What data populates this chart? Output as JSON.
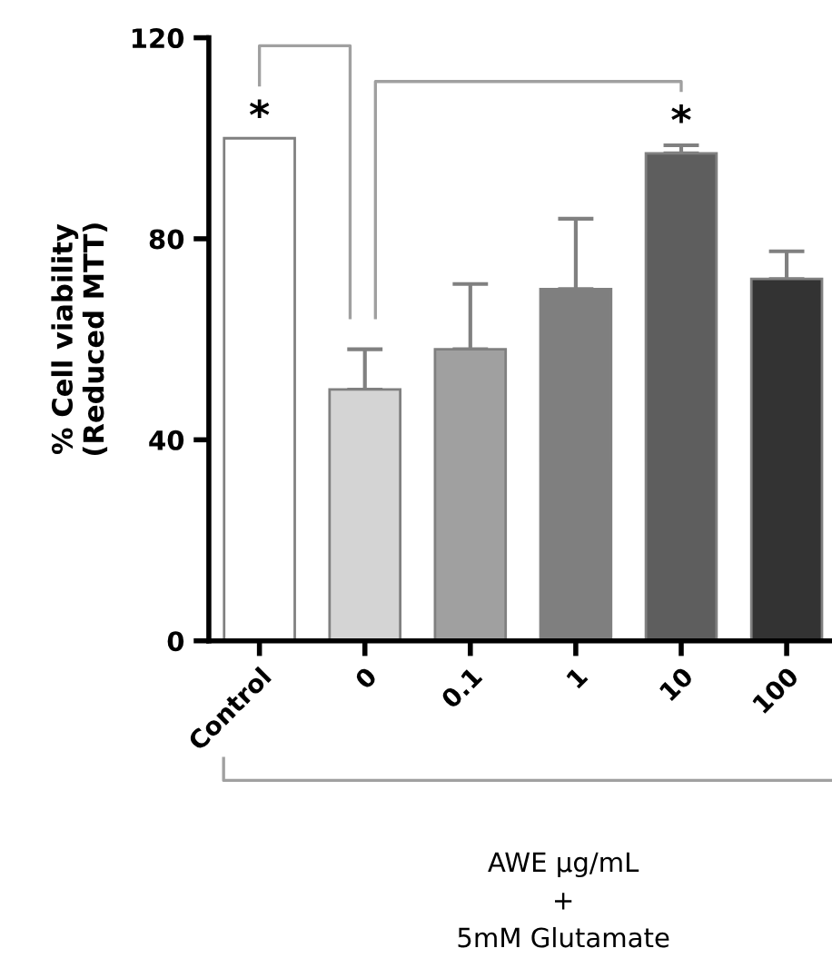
{
  "chart_data": {
    "type": "bar",
    "ylabel": "% Cell viability\n(Reduced MTT)",
    "xlabel": "AWE μg/mL\n+\n5mM Glutamate",
    "categories": [
      "Control",
      "0",
      "0.1",
      "1",
      "10",
      "100"
    ],
    "values": [
      100,
      50,
      58,
      70,
      97,
      72
    ],
    "colors": [
      "#ffffff",
      "#d4d4d4",
      "#a0a0a0",
      "#7f7f7f",
      "#5e5e5e",
      "#333333"
    ],
    "errors": [
      null,
      [
        50,
        58
      ],
      [
        58,
        71
      ],
      [
        70,
        84
      ],
      [
        97,
        98.6
      ],
      [
        72,
        77.5
      ]
    ],
    "ylim": [
      0,
      120
    ],
    "yticks": [
      0,
      40,
      80,
      120
    ],
    "grid": false,
    "legend": false,
    "annotations": [
      "*",
      "*"
    ]
  }
}
